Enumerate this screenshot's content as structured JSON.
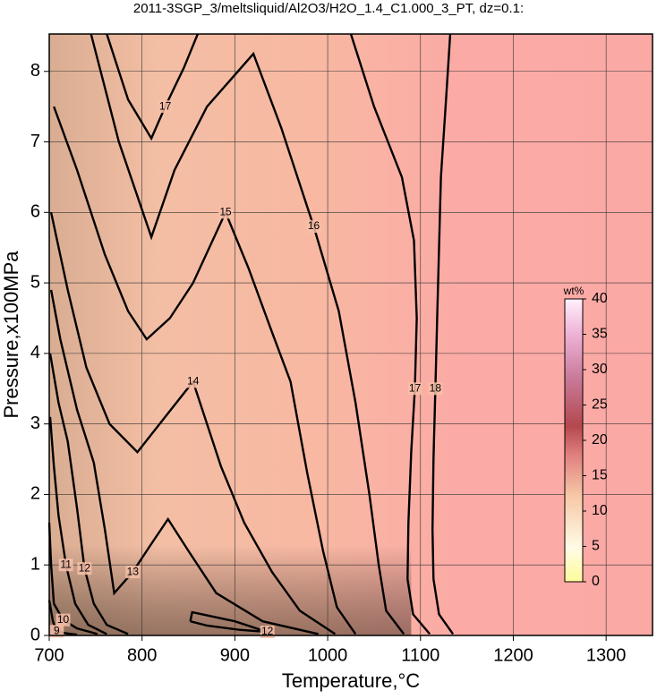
{
  "chart_data": {
    "type": "contour",
    "title": "2011-3SGP_3/meltsliquid/Al2O3/H2O_1.4_C1.000_3_PT, dz=0.1:",
    "x_label": "Temperature,°C",
    "y_label": "Pressure,x100MPa",
    "xlim": [
      700,
      1350
    ],
    "ylim": [
      0,
      8.53
    ],
    "xticks": [
      700,
      800,
      900,
      1000,
      1100,
      1200,
      1300
    ],
    "yticks": [
      0,
      1,
      2,
      3,
      4,
      5,
      6,
      7,
      8
    ],
    "grid": true,
    "contours": [
      {
        "level": 18,
        "x": [
          1132,
          1127,
          1122,
          1120,
          1118,
          1116,
          1114,
          1113,
          1114,
          1120,
          1135
        ],
        "y": [
          8.53,
          7.5,
          6.5,
          5.5,
          4.5,
          3.5,
          2.5,
          1.5,
          0.8,
          0.3,
          0.02
        ]
      },
      {
        "level": 17,
        "x": [
          1025,
          1050,
          1080,
          1093,
          1096,
          1094,
          1090,
          1087,
          1086,
          1092,
          1110
        ],
        "y": [
          8.53,
          7.5,
          6.5,
          5.6,
          4.5,
          3.5,
          2.6,
          1.6,
          0.8,
          0.3,
          0.02
        ]
      },
      {
        "level": 17,
        "x": [
          762,
          785,
          810,
          825,
          845,
          860
        ],
        "y": [
          8.53,
          7.6,
          7.05,
          7.5,
          8.05,
          8.53
        ]
      },
      {
        "level": 16,
        "x": [
          745,
          775,
          810,
          835,
          870,
          920,
          950,
          985,
          1012,
          1030,
          1045,
          1055,
          1063,
          1082
        ],
        "y": [
          8.53,
          7.0,
          5.65,
          6.6,
          7.5,
          8.25,
          7.2,
          5.8,
          4.6,
          3.3,
          2.0,
          1.0,
          0.35,
          0.02
        ]
      },
      {
        "level": 15,
        "x": [
          705,
          730,
          760,
          785,
          805,
          830,
          855,
          890,
          915,
          940,
          960,
          978,
          995,
          1010,
          1030
        ],
        "y": [
          7.5,
          6.6,
          5.4,
          4.6,
          4.2,
          4.5,
          5.0,
          6.0,
          5.2,
          4.3,
          3.6,
          2.3,
          1.2,
          0.4,
          0.02
        ]
      },
      {
        "level": 14,
        "x": [
          702,
          720,
          740,
          765,
          795,
          825,
          855,
          870,
          885,
          910,
          940,
          970,
          1008
        ],
        "y": [
          6.0,
          4.9,
          3.8,
          3.0,
          2.6,
          3.1,
          3.6,
          3.0,
          2.4,
          1.6,
          0.9,
          0.35,
          0.02
        ]
      },
      {
        "level": 13,
        "x": [
          702,
          712,
          730,
          748,
          760,
          770,
          790,
          810,
          828,
          850,
          880,
          930,
          990
        ],
        "y": [
          4.9,
          4.2,
          3.2,
          2.45,
          1.5,
          0.6,
          0.9,
          1.3,
          1.65,
          1.2,
          0.6,
          0.2,
          0.02
        ]
      },
      {
        "level": 12,
        "x": [
          701,
          710,
          720,
          730,
          738,
          748,
          762,
          785
        ],
        "y": [
          4.0,
          3.3,
          2.75,
          1.8,
          0.95,
          0.45,
          0.15,
          0.02
        ]
      },
      {
        "level": 12,
        "x": [
          852,
          854,
          865,
          900,
          935,
          905,
          870,
          852
        ],
        "y": [
          0.2,
          0.33,
          0.3,
          0.2,
          0.05,
          0.08,
          0.14,
          0.2
        ]
      },
      {
        "level": 11,
        "x": [
          701,
          705,
          710,
          718,
          728,
          742,
          762
        ],
        "y": [
          3.1,
          2.4,
          1.7,
          1.0,
          0.45,
          0.15,
          0.02
        ]
      },
      {
        "level": 10,
        "x": [
          700,
          702,
          705,
          715,
          730,
          752
        ],
        "y": [
          1.6,
          1.0,
          0.45,
          0.22,
          0.1,
          0.02
        ]
      },
      {
        "level": 9,
        "x": [
          700,
          704,
          708,
          718,
          730
        ],
        "y": [
          0.5,
          0.2,
          0.06,
          0.03,
          0.01
        ]
      }
    ],
    "colorbar": {
      "label": "wt%",
      "lim": [
        0,
        40
      ],
      "ticks": [
        0,
        5,
        10,
        15,
        20,
        25,
        30,
        35,
        40
      ]
    }
  }
}
